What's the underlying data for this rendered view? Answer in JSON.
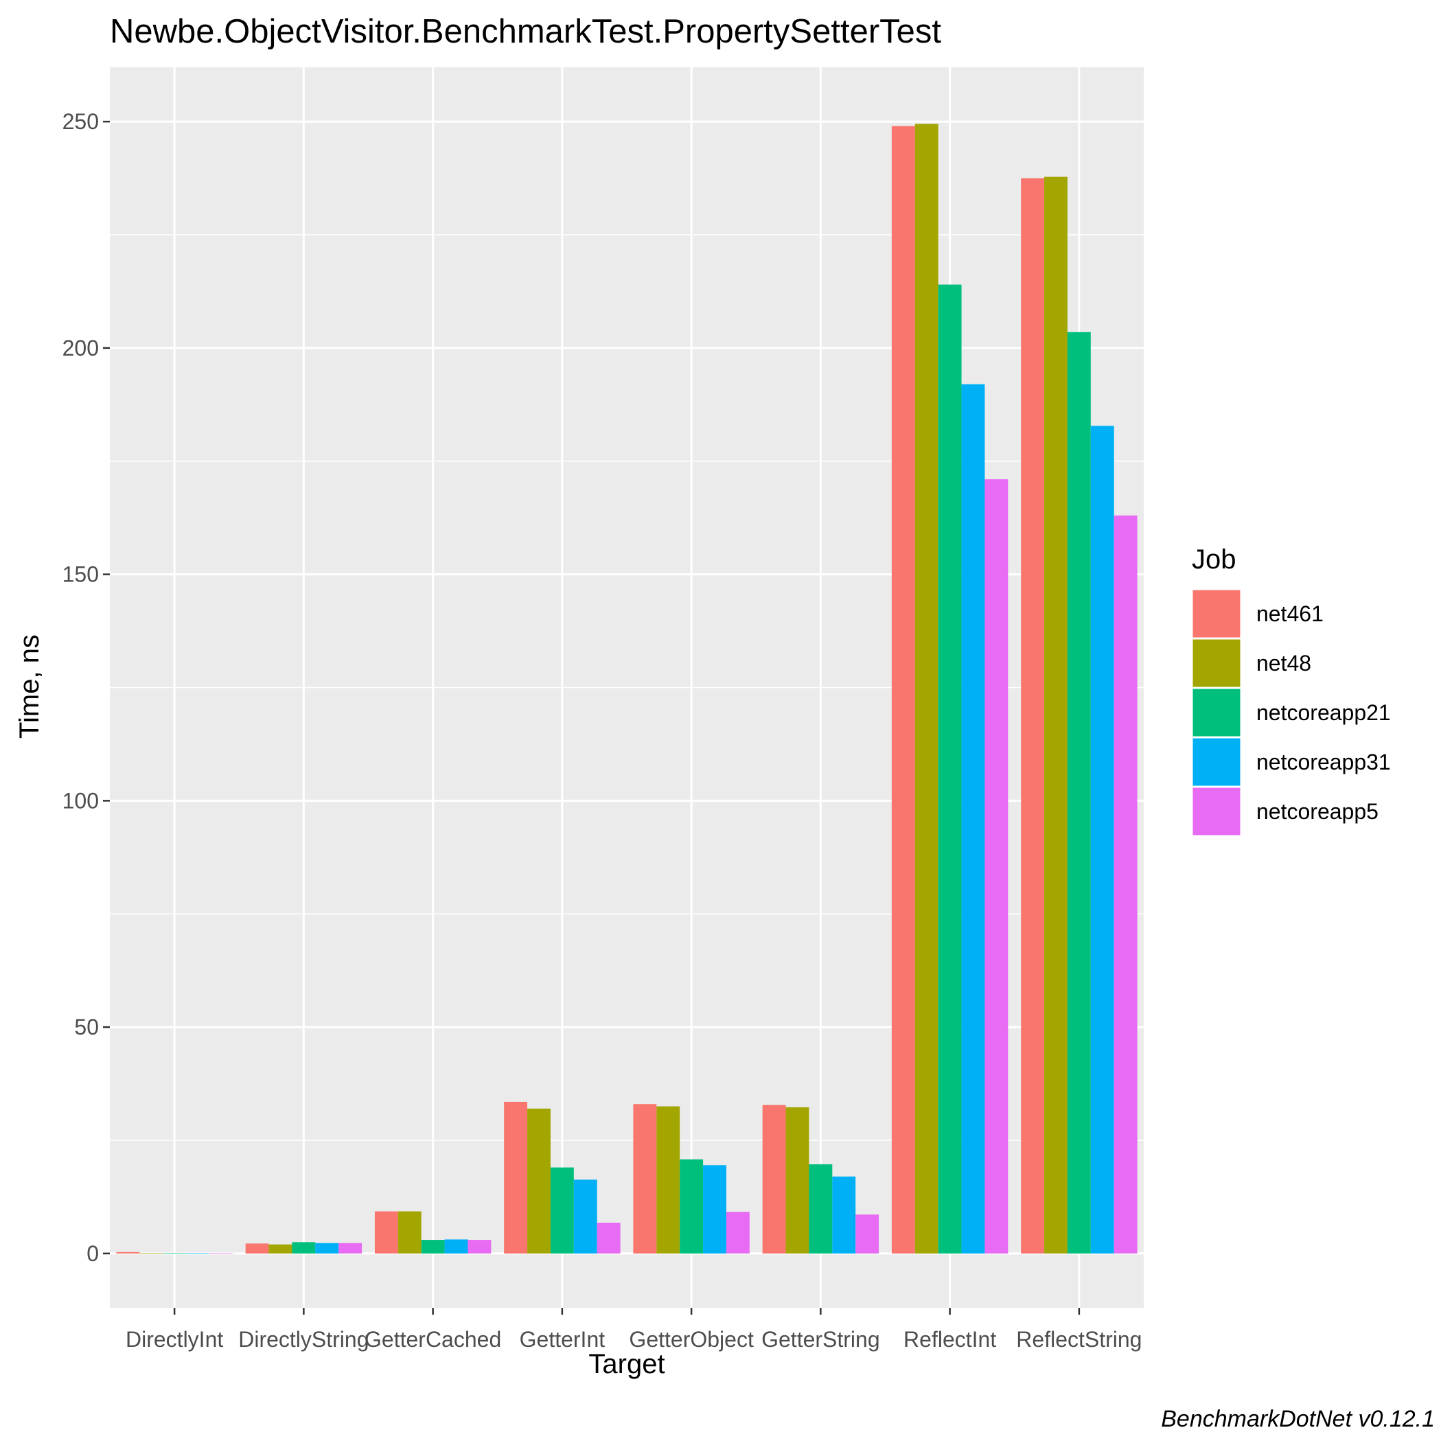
{
  "chart_data": {
    "type": "bar",
    "title": "Newbe.ObjectVisitor.BenchmarkTest.PropertySetterTest",
    "xlabel": "Target",
    "ylabel": "Time, ns",
    "caption": "BenchmarkDotNet v0.12.1",
    "categories": [
      "DirectlyInt",
      "DirectlyString",
      "GetterCached",
      "GetterInt",
      "GetterObject",
      "GetterString",
      "ReflectInt",
      "ReflectString"
    ],
    "y_ticks": [
      "0",
      "50",
      "100",
      "150",
      "200",
      "250"
    ],
    "ylim": [
      -12,
      262
    ],
    "grid": true,
    "legend": {
      "title": "Job",
      "position": "right"
    },
    "series": [
      {
        "name": "net461",
        "color": "#F8766D",
        "values": [
          0.3,
          2.2,
          9.3,
          33.5,
          33.0,
          32.8,
          249.0,
          237.5
        ]
      },
      {
        "name": "net48",
        "color": "#A3A500",
        "values": [
          0.1,
          2.0,
          9.3,
          32.0,
          32.5,
          32.3,
          249.5,
          237.8
        ]
      },
      {
        "name": "netcoreapp21",
        "color": "#00BF7D",
        "values": [
          0.1,
          2.5,
          3.0,
          19.0,
          20.8,
          19.7,
          214.0,
          203.5
        ]
      },
      {
        "name": "netcoreapp31",
        "color": "#00B0F6",
        "values": [
          0.1,
          2.3,
          3.1,
          16.3,
          19.5,
          17.0,
          192.0,
          182.8
        ]
      },
      {
        "name": "netcoreapp5",
        "color": "#E76BF3",
        "values": [
          0.1,
          2.3,
          3.0,
          6.8,
          9.2,
          8.6,
          171.0,
          163.0
        ]
      }
    ]
  }
}
